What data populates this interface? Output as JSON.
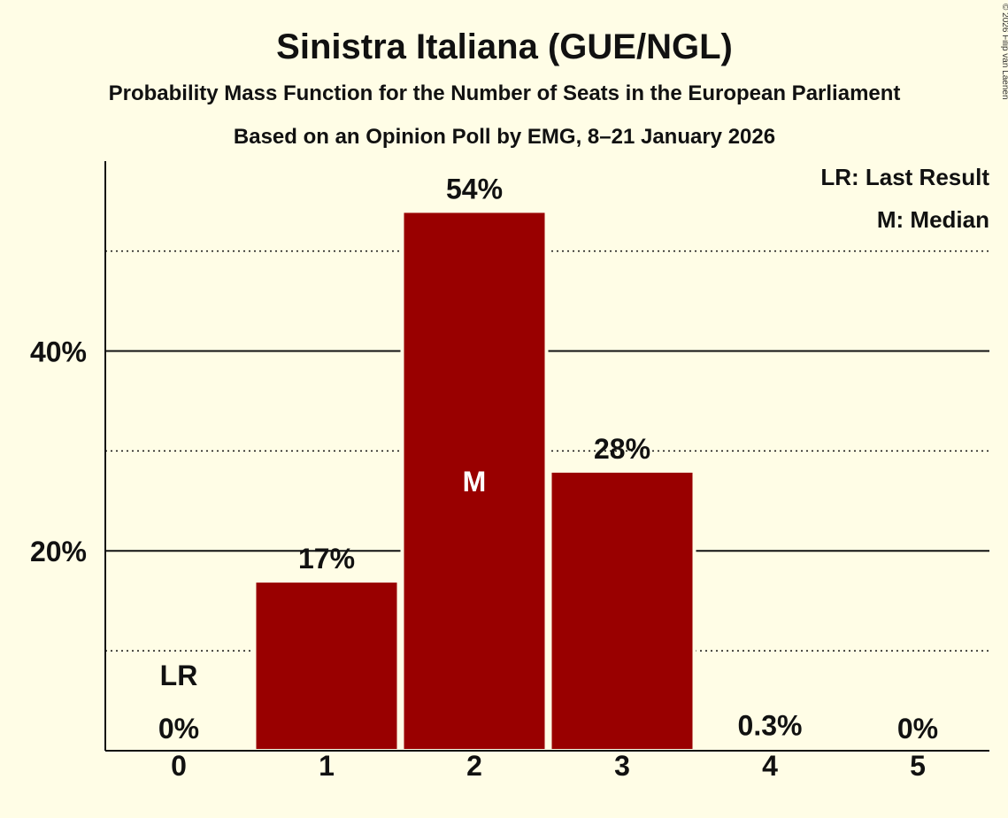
{
  "chart_data": {
    "type": "bar",
    "title": "Sinistra Italiana (GUE/NGL)",
    "subtitle": "Probability Mass Function for the Number of Seats in the European Parliament",
    "subtitle2": "Based on an Opinion Poll by EMG, 8–21 January 2026",
    "copyright": "© 2026 Filip van Laenen",
    "categories": [
      "0",
      "1",
      "2",
      "3",
      "4",
      "5"
    ],
    "values": [
      0,
      17,
      54,
      28,
      0.3,
      0
    ],
    "value_labels": [
      "0%",
      "17%",
      "54%",
      "28%",
      "0.3%",
      "0%"
    ],
    "ylim": [
      0,
      59
    ],
    "yticks": [
      {
        "value": 20,
        "label": "20%"
      },
      {
        "value": 40,
        "label": "40%"
      }
    ],
    "minor_gridlines": [
      10,
      30,
      50
    ],
    "last_result_index": 0,
    "last_result_marker": "LR",
    "median_index": 2,
    "median_marker": "M",
    "legend": [
      "LR: Last Result",
      "M: Median"
    ],
    "bar_color": "#990000",
    "background": "#FFFDE6"
  }
}
